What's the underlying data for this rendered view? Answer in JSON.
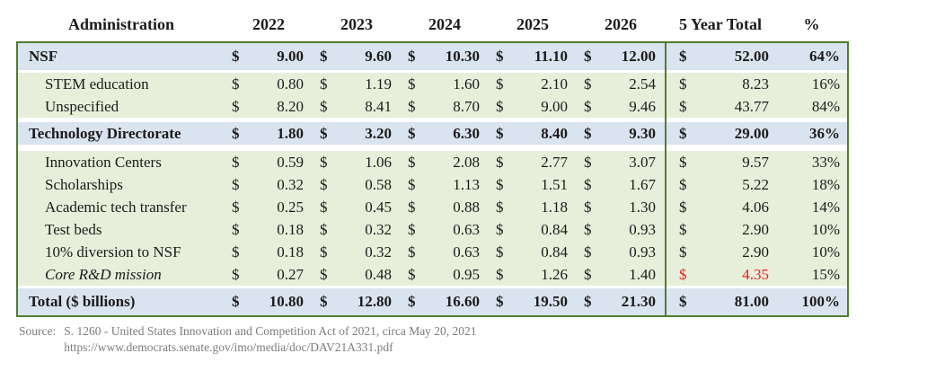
{
  "currency_symbol": "$",
  "colors": {
    "row_blue": "#dae4f0",
    "row_green": "#e7efdb",
    "border_green": "#507c30",
    "negative_red": "#f01d1d",
    "source_gray": "#7c7c7c"
  },
  "table": {
    "headers": [
      "Administration",
      "2022",
      "2023",
      "2024",
      "2025",
      "2026",
      "5 Year Total",
      "%"
    ],
    "rows": [
      {
        "label": "NSF",
        "band": "blue",
        "bold": true,
        "italic": false,
        "indent": false,
        "values": [
          "9.00",
          "9.60",
          "10.30",
          "11.10",
          "12.00"
        ],
        "five_year": "52.00",
        "five_year_red": false,
        "pct": "64%"
      },
      {
        "label": "STEM education",
        "band": "green",
        "bold": false,
        "italic": false,
        "indent": true,
        "values": [
          "0.80",
          "1.19",
          "1.60",
          "2.10",
          "2.54"
        ],
        "five_year": "8.23",
        "five_year_red": false,
        "pct": "16%"
      },
      {
        "label": "Unspecified",
        "band": "green",
        "bold": false,
        "italic": false,
        "indent": true,
        "values": [
          "8.20",
          "8.41",
          "8.70",
          "9.00",
          "9.46"
        ],
        "five_year": "43.77",
        "five_year_red": false,
        "pct": "84%"
      },
      {
        "label": "Technology Directorate",
        "band": "blue",
        "bold": true,
        "italic": false,
        "indent": false,
        "values": [
          "1.80",
          "3.20",
          "6.30",
          "8.40",
          "9.30"
        ],
        "five_year": "29.00",
        "five_year_red": false,
        "pct": "36%"
      },
      {
        "label": "Innovation Centers",
        "band": "green",
        "bold": false,
        "italic": false,
        "indent": true,
        "values": [
          "0.59",
          "1.06",
          "2.08",
          "2.77",
          "3.07"
        ],
        "five_year": "9.57",
        "five_year_red": false,
        "pct": "33%"
      },
      {
        "label": "Scholarships",
        "band": "green",
        "bold": false,
        "italic": false,
        "indent": true,
        "values": [
          "0.32",
          "0.58",
          "1.13",
          "1.51",
          "1.67"
        ],
        "five_year": "5.22",
        "five_year_red": false,
        "pct": "18%"
      },
      {
        "label": "Academic tech transfer",
        "band": "green",
        "bold": false,
        "italic": false,
        "indent": true,
        "values": [
          "0.25",
          "0.45",
          "0.88",
          "1.18",
          "1.30"
        ],
        "five_year": "4.06",
        "five_year_red": false,
        "pct": "14%"
      },
      {
        "label": "Test beds",
        "band": "green",
        "bold": false,
        "italic": false,
        "indent": true,
        "values": [
          "0.18",
          "0.32",
          "0.63",
          "0.84",
          "0.93"
        ],
        "five_year": "2.90",
        "five_year_red": false,
        "pct": "10%"
      },
      {
        "label": "10% diversion to NSF",
        "band": "green",
        "bold": false,
        "italic": false,
        "indent": true,
        "values": [
          "0.18",
          "0.32",
          "0.63",
          "0.84",
          "0.93"
        ],
        "five_year": "2.90",
        "five_year_red": false,
        "pct": "10%"
      },
      {
        "label": "Core R&D mission",
        "band": "green",
        "bold": false,
        "italic": true,
        "indent": true,
        "values": [
          "0.27",
          "0.48",
          "0.95",
          "1.26",
          "1.40"
        ],
        "five_year": "4.35",
        "five_year_red": true,
        "pct": "15%"
      },
      {
        "label": "Total ($ billions)",
        "band": "blue",
        "bold": true,
        "italic": false,
        "indent": false,
        "values": [
          "10.80",
          "12.80",
          "16.60",
          "19.50",
          "21.30"
        ],
        "five_year": "81.00",
        "five_year_red": false,
        "pct": "100%"
      }
    ],
    "source": {
      "label": "Source:",
      "line1": "S. 1260 - United States Innovation and Competition Act of 2021, circa May 20, 2021",
      "line2": "https://www.democrats.senate.gov/imo/media/doc/DAV21A331.pdf"
    }
  }
}
